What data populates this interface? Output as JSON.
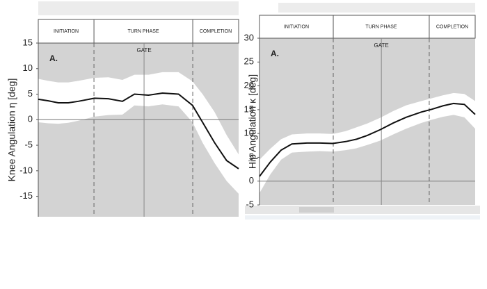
{
  "chart_data": [
    {
      "type": "line",
      "panel_label": "A.",
      "y_label": "Knee Angulation η [deg]",
      "gate_label": "GATE",
      "xlim": [
        0,
        100
      ],
      "ylim": [
        -19,
        15
      ],
      "yticks": [
        15,
        10,
        5,
        0,
        -5,
        -10,
        -15
      ],
      "zero_line": true,
      "plot_color": "#d3d3d3",
      "phases": [
        {
          "label": "INITIATION",
          "start": 0,
          "end": 27.8
        },
        {
          "label": "TURN PHASE",
          "start": 27.8,
          "end": 77.1
        },
        {
          "label": "COMPLETION",
          "start": 77.1,
          "end": 100
        }
      ],
      "gate_x": 52.8,
      "x": [
        0,
        5,
        10,
        15,
        20,
        28,
        35,
        42,
        48,
        55,
        62,
        70,
        77,
        82,
        88,
        94,
        100
      ],
      "series": [
        {
          "color": "#111111",
          "values": [
            4,
            3.7,
            3.3,
            3.3,
            3.6,
            4.2,
            4.1,
            3.6,
            5.0,
            4.8,
            5.2,
            5.0,
            2.8,
            -0.5,
            -4.5,
            -8,
            -9.6
          ]
        }
      ],
      "band": {
        "color": "#ffffff",
        "upper": [
          8,
          7.6,
          7.3,
          7.3,
          7.6,
          8.2,
          8.3,
          7.8,
          8.8,
          8.8,
          9.3,
          9.3,
          7.5,
          5,
          1.5,
          -3,
          -6.8
        ],
        "lower": [
          -0.5,
          -0.7,
          -0.8,
          -0.6,
          -0.2,
          0.6,
          0.9,
          1.0,
          2.8,
          2.6,
          3.0,
          2.6,
          -0.5,
          -4.5,
          -8.5,
          -12,
          -14.5
        ]
      }
    },
    {
      "type": "line",
      "panel_label": "A.",
      "y_label": "Hip Angulation κ [deg]",
      "gate_label": "GATE",
      "xlim": [
        0,
        100
      ],
      "ylim": [
        -5,
        30
      ],
      "yticks": [
        30,
        25,
        20,
        15,
        10,
        5,
        0,
        -5
      ],
      "zero_line": true,
      "plot_color": "#d3d3d3",
      "phases": [
        {
          "label": "INITIATION",
          "start": 0,
          "end": 34.2
        },
        {
          "label": "TURN PHASE",
          "start": 34.2,
          "end": 78.7
        },
        {
          "label": "COMPLETION",
          "start": 78.7,
          "end": 100
        }
      ],
      "gate_x": 56.5,
      "x": [
        0,
        5,
        10,
        15,
        22,
        28,
        34,
        40,
        45,
        50,
        56,
        62,
        68,
        75,
        80,
        85,
        90,
        95,
        100
      ],
      "series": [
        {
          "color": "#111111",
          "values": [
            1,
            4,
            6.5,
            7.8,
            8,
            8,
            7.9,
            8.3,
            8.8,
            9.6,
            10.8,
            12.2,
            13.4,
            14.5,
            15.1,
            15.8,
            16.3,
            16.1,
            14
          ]
        }
      ],
      "band": {
        "color": "#ffffff",
        "upper": [
          4.5,
          6.8,
          8.8,
          9.8,
          10,
          10,
          9.9,
          10.5,
          11.3,
          12.1,
          13.3,
          14.7,
          15.9,
          16.8,
          17.4,
          18,
          18.5,
          18.3,
          16.8
        ],
        "lower": [
          -2.5,
          1.4,
          4.5,
          6,
          6.2,
          6.3,
          6.2,
          6.5,
          6.9,
          7.6,
          8.5,
          9.8,
          11,
          12.2,
          12.9,
          13.5,
          13.9,
          13.4,
          11
        ]
      }
    }
  ]
}
